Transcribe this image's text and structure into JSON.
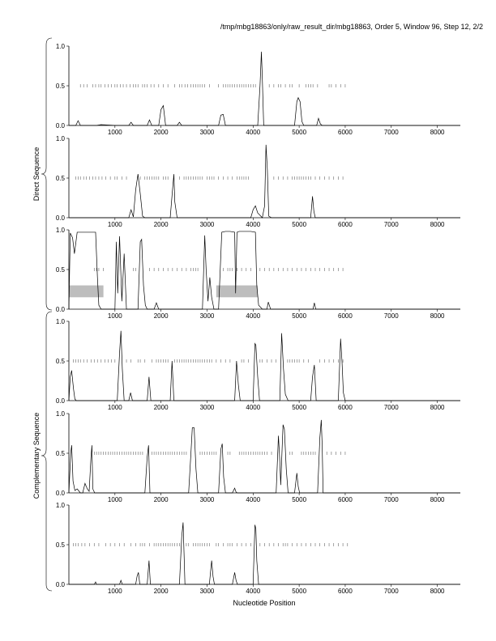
{
  "header": {
    "title": "/tmp/mbg18863/only/raw_result_dir/mbg18863, Order 5, Window 96, Step 12, 2/2"
  },
  "groups": [
    {
      "label": "Direct Sequence"
    },
    {
      "label": "Complementary Sequence"
    }
  ],
  "xlabel": "Nucleotide Position",
  "chart_data": [
    {
      "type": "line",
      "panel": 1,
      "strand": "direct",
      "frame": 1,
      "xlim": [
        0,
        8500
      ],
      "ylim": [
        0,
        1
      ],
      "xticks": [
        1000,
        2000,
        3000,
        4000,
        5000,
        6000,
        7000,
        8000
      ],
      "yticks": [
        "0.0",
        "0.5",
        "1.0"
      ],
      "series": [
        {
          "x": [
            0,
            100,
            150,
            200,
            250,
            300,
            600,
            700,
            1000,
            1300,
            1350,
            1400,
            1700,
            1750,
            1800,
            1950,
            2000,
            2050,
            2100,
            2350,
            2400,
            2450,
            3250,
            3300,
            3350,
            3400,
            4100,
            4150,
            4180,
            4200,
            4230,
            4300,
            4900,
            4950,
            4980,
            5020,
            5060,
            5100,
            5380,
            5420,
            5460,
            5500,
            6000,
            8500
          ],
          "y": [
            0,
            0,
            0,
            0.06,
            0,
            0,
            0,
            0.01,
            0,
            0,
            0.04,
            0,
            0,
            0.07,
            0,
            0,
            0.2,
            0.25,
            0,
            0,
            0.04,
            0,
            0,
            0.13,
            0.14,
            0,
            0,
            0.5,
            0.93,
            0.6,
            0,
            0,
            0,
            0.3,
            0.35,
            0.3,
            0.05,
            0,
            0,
            0.09,
            0.02,
            0,
            0,
            0
          ]
        }
      ],
      "stop_codons": [
        250,
        320,
        400,
        520,
        580,
        650,
        700,
        780,
        850,
        920,
        1000,
        1050,
        1120,
        1180,
        1250,
        1330,
        1400,
        1450,
        1500,
        1600,
        1650,
        1700,
        1780,
        1850,
        1950,
        2050,
        2150,
        2300,
        2400,
        2450,
        2520,
        2580,
        2650,
        2700,
        2750,
        2800,
        2850,
        2900,
        2950,
        3050,
        3250,
        3350,
        3400,
        3450,
        3500,
        3550,
        3600,
        3650,
        3700,
        3750,
        3800,
        3850,
        3900,
        3950,
        4000,
        4050,
        4350,
        4450,
        4550,
        4600,
        4700,
        4800,
        4850,
        5000,
        5150,
        5200,
        5250,
        5300,
        5400,
        5650,
        5700,
        5800,
        5900,
        6000
      ]
    },
    {
      "type": "line",
      "panel": 2,
      "strand": "direct",
      "frame": 2,
      "xlim": [
        0,
        8500
      ],
      "ylim": [
        0,
        1
      ],
      "xticks": [
        1000,
        2000,
        3000,
        4000,
        5000,
        6000,
        7000,
        8000
      ],
      "yticks": [
        "0.0",
        "0.5",
        "1.0"
      ],
      "series": [
        {
          "x": [
            0,
            1300,
            1350,
            1400,
            1450,
            1500,
            1550,
            1600,
            1650,
            2200,
            2250,
            2280,
            2300,
            2350,
            3950,
            4000,
            4050,
            4100,
            4200,
            4250,
            4280,
            4310,
            4340,
            4400,
            5250,
            5290,
            5320,
            5350,
            8500
          ],
          "y": [
            0,
            0,
            0.1,
            0.01,
            0.35,
            0.55,
            0.3,
            0.02,
            0,
            0,
            0.35,
            0.55,
            0.2,
            0,
            0,
            0.1,
            0.15,
            0.06,
            0,
            0.15,
            0.92,
            0.6,
            0.02,
            0,
            0,
            0.27,
            0.08,
            0,
            0
          ]
        }
      ],
      "stop_codons": [
        150,
        200,
        250,
        320,
        380,
        450,
        520,
        580,
        650,
        720,
        800,
        900,
        1000,
        1050,
        1150,
        1250,
        1550,
        1650,
        1700,
        1750,
        1800,
        1850,
        1900,
        1950,
        2050,
        2100,
        2150,
        2400,
        2500,
        2550,
        2600,
        2650,
        2700,
        2750,
        2800,
        2850,
        2900,
        3000,
        3050,
        3100,
        3150,
        3250,
        3350,
        3450,
        3550,
        3650,
        3700,
        3750,
        3800,
        3850,
        3900,
        4450,
        4550,
        4650,
        4750,
        4850,
        4900,
        4950,
        5000,
        5050,
        5100,
        5150,
        5200,
        5250,
        5350,
        5450,
        5550,
        5650,
        5750,
        5850,
        5950
      ]
    },
    {
      "type": "line",
      "panel": 3,
      "strand": "direct",
      "frame": 3,
      "xlim": [
        0,
        8500
      ],
      "ylim": [
        0,
        1
      ],
      "xticks": [
        1000,
        2000,
        3000,
        4000,
        5000,
        6000,
        7000,
        8000
      ],
      "yticks": [
        "0.0",
        "0.5",
        "1.0"
      ],
      "series": [
        {
          "x": [
            0,
            30,
            80,
            120,
            180,
            250,
            320,
            420,
            500,
            580,
            620,
            650,
            700,
            750,
            1000,
            1030,
            1060,
            1100,
            1150,
            1200,
            1250,
            1350,
            1500,
            1550,
            1580,
            1620,
            1660,
            1700,
            1850,
            1900,
            1950,
            2900,
            2950,
            2980,
            3020,
            3060,
            3100,
            3150,
            3200,
            3250,
            3320,
            3400,
            3500,
            3600,
            3620,
            3650,
            3700,
            3750,
            3850,
            3950,
            4050,
            4080,
            4120,
            4200,
            4300,
            4330,
            4380,
            5300,
            5330,
            5360,
            8500
          ],
          "y": [
            0,
            0.96,
            0.9,
            0.7,
            0.97,
            0.97,
            0.97,
            0.97,
            0.97,
            0.97,
            0.4,
            0.05,
            0,
            0,
            0,
            0.85,
            0.2,
            0.92,
            0.1,
            0.7,
            0,
            0,
            0,
            0.85,
            0.88,
            0.3,
            0.05,
            0,
            0,
            0.08,
            0,
            0,
            0.93,
            0.5,
            0.1,
            0.4,
            0.15,
            0,
            0,
            0,
            0.97,
            0.98,
            0.98,
            0.97,
            0.2,
            0.97,
            0.98,
            0.98,
            0.98,
            0.98,
            0.97,
            0.3,
            0.05,
            0,
            0,
            0.09,
            0,
            0,
            0.08,
            0,
            0
          ]
        }
      ],
      "stop_codons": [
        550,
        600,
        650,
        750,
        1400,
        1450,
        1750,
        1850,
        1950,
        2050,
        2150,
        2250,
        2350,
        2450,
        2550,
        2650,
        2700,
        2750,
        2800,
        3350,
        3450,
        3500,
        3550,
        3650,
        3750,
        3850,
        3950,
        4150,
        4250,
        4350,
        4450,
        4550,
        4650,
        4750,
        4850,
        4950,
        5050,
        5150,
        5250,
        5350,
        5450,
        5550,
        5650,
        5750,
        5850,
        5950
      ],
      "regions": [
        [
          0,
          750
        ],
        [
          3200,
          4100
        ]
      ]
    },
    {
      "type": "line",
      "panel": 4,
      "strand": "complementary",
      "frame": 1,
      "xlim": [
        0,
        8500
      ],
      "ylim": [
        0,
        1
      ],
      "xticks": [
        1000,
        2000,
        3000,
        4000,
        5000,
        6000,
        7000,
        8000
      ],
      "yticks": [
        "0.0",
        "0.5",
        "1.0"
      ],
      "series": [
        {
          "x": [
            0,
            30,
            60,
            100,
            130,
            160,
            1050,
            1100,
            1130,
            1160,
            1200,
            1300,
            1340,
            1380,
            1700,
            1740,
            1780,
            2200,
            2240,
            2280,
            3600,
            3640,
            3680,
            3720,
            4000,
            4040,
            4060,
            4100,
            4140,
            4580,
            4620,
            4660,
            4700,
            4760,
            5250,
            5290,
            5330,
            5370,
            5850,
            5900,
            5930,
            5960,
            6000,
            8500
          ],
          "y": [
            0,
            0.3,
            0.38,
            0.15,
            0.02,
            0,
            0,
            0.6,
            0.88,
            0.4,
            0,
            0,
            0.1,
            0,
            0,
            0.3,
            0,
            0,
            0.5,
            0,
            0,
            0.5,
            0.2,
            0,
            0,
            0.72,
            0.7,
            0.3,
            0,
            0,
            0.85,
            0.4,
            0.08,
            0,
            0,
            0.3,
            0.45,
            0,
            0,
            0.78,
            0.5,
            0.1,
            0,
            0
          ]
        }
      ],
      "stop_codons": [
        100,
        150,
        200,
        250,
        320,
        400,
        480,
        550,
        620,
        700,
        780,
        850,
        920,
        1000,
        1250,
        1350,
        1500,
        1550,
        1650,
        1800,
        1900,
        1950,
        2000,
        2050,
        2100,
        2150,
        2300,
        2350,
        2400,
        2450,
        2500,
        2550,
        2600,
        2650,
        2700,
        2750,
        2800,
        2850,
        2900,
        2950,
        3000,
        3050,
        3100,
        3200,
        3300,
        3400,
        3500,
        3750,
        3800,
        3900,
        4150,
        4200,
        4300,
        4400,
        4500,
        4750,
        4800,
        4850,
        4900,
        4950,
        5000,
        5100,
        5200,
        5450,
        5550,
        5650,
        5750,
        5850,
        5950
      ]
    },
    {
      "type": "line",
      "panel": 5,
      "strand": "complementary",
      "frame": 2,
      "xlim": [
        0,
        8500
      ],
      "ylim": [
        0,
        1
      ],
      "xticks": [
        1000,
        2000,
        3000,
        4000,
        5000,
        6000,
        7000,
        8000
      ],
      "yticks": [
        "0.0",
        "0.5",
        "1.0"
      ],
      "series": [
        {
          "x": [
            0,
            40,
            60,
            90,
            130,
            180,
            250,
            300,
            350,
            400,
            440,
            480,
            500,
            520,
            560,
            1650,
            1700,
            1730,
            1760,
            2600,
            2650,
            2680,
            2720,
            2760,
            2800,
            3250,
            3300,
            3330,
            3360,
            3400,
            3550,
            3600,
            3630,
            3660,
            4500,
            4550,
            4580,
            4600,
            4650,
            4680,
            4720,
            4760,
            4900,
            4950,
            4980,
            5010,
            5400,
            5450,
            5480,
            5500,
            5520,
            8500
          ],
          "y": [
            0,
            0.5,
            0.6,
            0.15,
            0.03,
            0.05,
            0,
            0,
            0.12,
            0.05,
            0.02,
            0.45,
            0.6,
            0.05,
            0,
            0,
            0.45,
            0.6,
            0,
            0,
            0.5,
            0.82,
            0.82,
            0.3,
            0,
            0,
            0.55,
            0.62,
            0.2,
            0,
            0,
            0.06,
            0.01,
            0,
            0,
            0.72,
            0.4,
            0.1,
            0.86,
            0.8,
            0.3,
            0,
            0,
            0.25,
            0.08,
            0,
            0,
            0.7,
            0.92,
            0.6,
            0,
            0
          ]
        }
      ],
      "stop_codons": [
        550,
        600,
        650,
        700,
        750,
        800,
        850,
        900,
        950,
        1000,
        1050,
        1100,
        1150,
        1200,
        1250,
        1300,
        1350,
        1400,
        1450,
        1500,
        1550,
        1600,
        1800,
        1850,
        1900,
        1950,
        2000,
        2050,
        2100,
        2150,
        2200,
        2250,
        2300,
        2350,
        2400,
        2450,
        2500,
        2550,
        2850,
        2900,
        2950,
        3000,
        3050,
        3100,
        3150,
        3200,
        3450,
        3500,
        3700,
        3750,
        3800,
        3850,
        3900,
        3950,
        4000,
        4050,
        4100,
        4150,
        4200,
        4250,
        4300,
        4400,
        4800,
        4850,
        5050,
        5100,
        5150,
        5200,
        5250,
        5300,
        5350,
        5600,
        5700,
        5800,
        5900,
        6000
      ]
    },
    {
      "type": "line",
      "panel": 6,
      "strand": "complementary",
      "frame": 3,
      "xlim": [
        0,
        8500
      ],
      "ylim": [
        0,
        1
      ],
      "xticks": [
        1000,
        2000,
        3000,
        4000,
        5000,
        6000,
        7000,
        8000
      ],
      "yticks": [
        "0.0",
        "0.5",
        "1.0"
      ],
      "series": [
        {
          "x": [
            0,
            550,
            580,
            600,
            1100,
            1130,
            1160,
            1450,
            1480,
            1510,
            1540,
            1700,
            1740,
            1770,
            2400,
            2450,
            2480,
            2500,
            2520,
            3050,
            3100,
            3130,
            3160,
            3550,
            3600,
            3630,
            3660,
            4000,
            4040,
            4060,
            4080,
            4120,
            8500
          ],
          "y": [
            0,
            0,
            0.03,
            0,
            0,
            0.05,
            0,
            0,
            0.1,
            0.15,
            0,
            0,
            0.3,
            0,
            0,
            0.6,
            0.78,
            0.4,
            0,
            0,
            0.3,
            0.1,
            0,
            0,
            0.15,
            0.05,
            0,
            0,
            0.75,
            0.7,
            0.3,
            0,
            0
          ]
        }
      ],
      "stop_codons": [
        100,
        150,
        200,
        280,
        350,
        450,
        550,
        650,
        800,
        900,
        1000,
        1100,
        1200,
        1350,
        1450,
        1550,
        1600,
        1650,
        1750,
        1850,
        1900,
        1950,
        2000,
        2050,
        2100,
        2150,
        2200,
        2250,
        2300,
        2350,
        2400,
        2550,
        2600,
        2700,
        2750,
        2800,
        2850,
        2900,
        2950,
        3000,
        3050,
        3200,
        3250,
        3350,
        3450,
        3500,
        3550,
        3650,
        3750,
        3850,
        3950,
        4150,
        4250,
        4350,
        4450,
        4550,
        4650,
        4700,
        4750,
        4850,
        4950,
        5050,
        5150,
        5250,
        5350,
        5450,
        5550,
        5650,
        5750,
        5850,
        5950,
        6050
      ]
    }
  ]
}
